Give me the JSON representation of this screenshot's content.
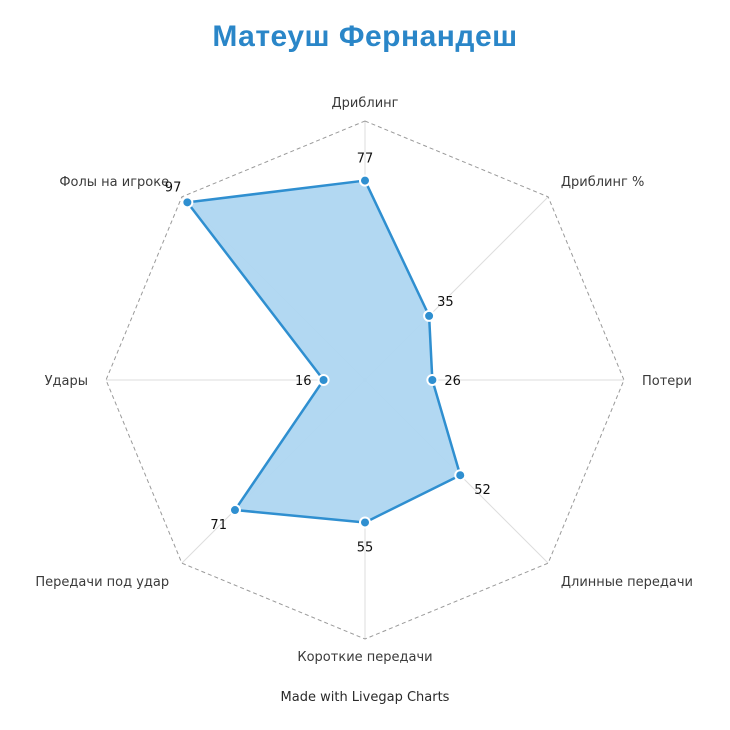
{
  "chart_data": {
    "type": "radar",
    "title": "Матеуш Фернандеш",
    "axes": [
      "Дриблинг",
      "Дриблинг %",
      "Потери",
      "Длинные передачи",
      "Короткие передачи",
      "Передачи под удар",
      "Удары",
      "Фолы на игроке"
    ],
    "series": [
      {
        "values": [
          77,
          35,
          26,
          52,
          55,
          71,
          16,
          97
        ]
      }
    ],
    "range": [
      0,
      100
    ],
    "colors": {
      "fill": "#aed6f1",
      "line": "#2f8fd0",
      "point_fill": "#2f8fd0",
      "point_stroke": "#ffffff",
      "outer_grid": "#9a9a9a",
      "spokes": "#dddddd"
    }
  },
  "footer": {
    "credit": "Made with Livegap Charts"
  }
}
